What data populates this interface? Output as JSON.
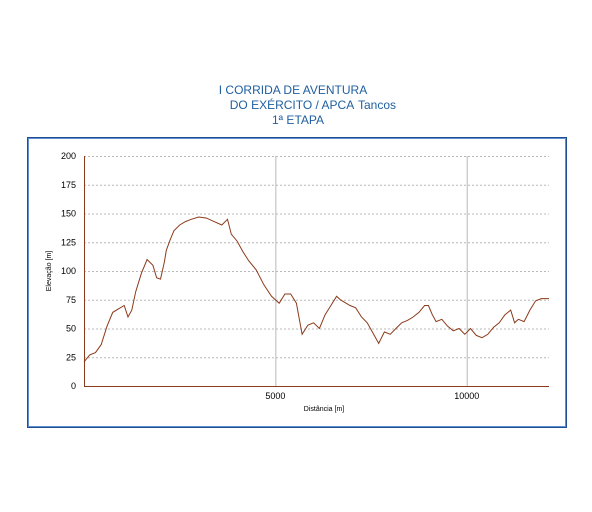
{
  "header": {
    "line1": "I CORRIDA DE AVENTURA",
    "line2": "DO EXÉRCITO / APCA",
    "place": "Tancos",
    "line3": "1ª ETAPA"
  },
  "chart_data": {
    "type": "line",
    "xlabel": "Distância [m]",
    "ylabel": "Elevação [m]",
    "xlim": [
      0,
      12150
    ],
    "ylim": [
      0,
      200
    ],
    "xticks": [
      5000,
      10000
    ],
    "yticks": [
      0,
      25,
      50,
      75,
      100,
      125,
      150,
      175,
      200
    ],
    "grid": true,
    "series": [
      {
        "color": "#8b3a1a",
        "x": [
          0,
          150,
          300,
          450,
          600,
          750,
          900,
          1050,
          1150,
          1250,
          1350,
          1500,
          1650,
          1800,
          1900,
          2000,
          2100,
          2150,
          2250,
          2350,
          2500,
          2650,
          2800,
          3000,
          3200,
          3400,
          3600,
          3750,
          3850,
          4000,
          4150,
          4300,
          4500,
          4700,
          4900,
          5100,
          5250,
          5400,
          5550,
          5700,
          5850,
          6000,
          6150,
          6300,
          6450,
          6600,
          6700,
          6800,
          6950,
          7100,
          7250,
          7400,
          7550,
          7700,
          7850,
          8000,
          8150,
          8300,
          8450,
          8600,
          8750,
          8900,
          9000,
          9100,
          9200,
          9350,
          9500,
          9650,
          9800,
          9950,
          10100,
          10250,
          10400,
          10550,
          10700,
          10850,
          11000,
          11150,
          11250,
          11350,
          11500,
          11650,
          11800,
          11950,
          12150
        ],
        "y": [
          21,
          27,
          29,
          36,
          52,
          64,
          67,
          70,
          60,
          66,
          82,
          98,
          110,
          105,
          94,
          93,
          108,
          118,
          127,
          135,
          140,
          143,
          145,
          147,
          146,
          143,
          140,
          145,
          132,
          126,
          117,
          109,
          101,
          88,
          78,
          72,
          80,
          80,
          72,
          45,
          53,
          55,
          50,
          62,
          70,
          78,
          75,
          73,
          70,
          68,
          60,
          55,
          46,
          37,
          47,
          45,
          50,
          55,
          57,
          60,
          64,
          70,
          70,
          62,
          56,
          58,
          52,
          48,
          50,
          45,
          50,
          44,
          42,
          45,
          51,
          55,
          62,
          66,
          55,
          58,
          56,
          66,
          74,
          76,
          76
        ]
      }
    ]
  }
}
